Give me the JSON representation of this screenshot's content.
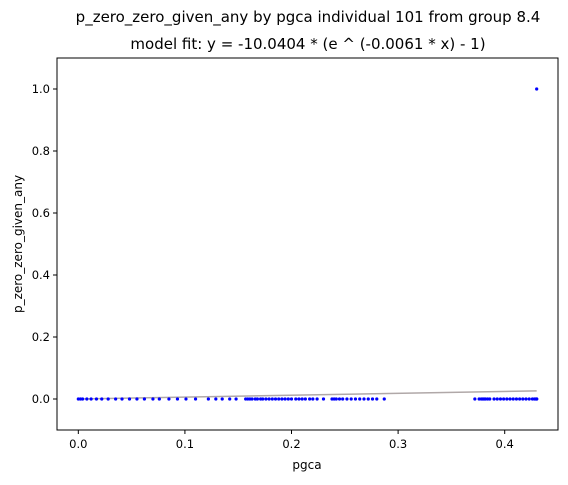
{
  "chart_data": {
    "type": "scatter",
    "title": "p_zero_zero_given_any by pgca individual 101 from group 8.4",
    "subtitle": "model fit: y = -10.0404 * (e ^ (-0.0061 * x) - 1)",
    "xlabel": "pgca",
    "ylabel": "p_zero_zero_given_any",
    "xlim": [
      -0.02,
      0.45
    ],
    "ylim": [
      -0.1,
      1.1
    ],
    "xticks": [
      {
        "value": 0.0,
        "label": "0.0"
      },
      {
        "value": 0.1,
        "label": "0.1"
      },
      {
        "value": 0.2,
        "label": "0.2"
      },
      {
        "value": 0.3,
        "label": "0.3"
      },
      {
        "value": 0.4,
        "label": "0.4"
      }
    ],
    "yticks": [
      {
        "value": 0.0,
        "label": "0.0"
      },
      {
        "value": 0.2,
        "label": "0.2"
      },
      {
        "value": 0.4,
        "label": "0.4"
      },
      {
        "value": 0.6,
        "label": "0.6"
      },
      {
        "value": 0.8,
        "label": "0.8"
      },
      {
        "value": 1.0,
        "label": "1.0"
      }
    ],
    "grid": false,
    "point_color": "#0000ff",
    "fit_color": "#b0a8a8",
    "series": [
      {
        "x": [
          0.0,
          0.002,
          0.004,
          0.008,
          0.012,
          0.017,
          0.022,
          0.028,
          0.035,
          0.041,
          0.048,
          0.055,
          0.062,
          0.07,
          0.076,
          0.085,
          0.093,
          0.101,
          0.11,
          0.122,
          0.129,
          0.135,
          0.142,
          0.148,
          0.157,
          0.159,
          0.161,
          0.163,
          0.166,
          0.168,
          0.171,
          0.173,
          0.176,
          0.179,
          0.182,
          0.185,
          0.188,
          0.191,
          0.194,
          0.197,
          0.2,
          0.204,
          0.207,
          0.21,
          0.213,
          0.217,
          0.22,
          0.224,
          0.23,
          0.238,
          0.24,
          0.242,
          0.245,
          0.248,
          0.252,
          0.256,
          0.26,
          0.264,
          0.268,
          0.272,
          0.276,
          0.28,
          0.287,
          0.372,
          0.376,
          0.378,
          0.379,
          0.38,
          0.381,
          0.382,
          0.384,
          0.386,
          0.39,
          0.393,
          0.396,
          0.399,
          0.402,
          0.405,
          0.408,
          0.411,
          0.414,
          0.417,
          0.42,
          0.423,
          0.426,
          0.428,
          0.429,
          0.43,
          0.43,
          0.43
        ],
        "y": [
          0.0,
          0.0,
          0.0,
          0.0,
          0.0,
          0.0,
          0.0,
          0.0,
          0.0,
          0.0,
          0.0,
          0.0,
          0.0,
          0.0,
          0.0,
          0.0,
          0.0,
          0.0,
          0.0,
          0.0,
          0.0,
          0.0,
          0.0,
          0.0,
          0.0,
          0.0,
          0.0,
          0.0,
          0.0,
          0.0,
          0.0,
          0.0,
          0.0,
          0.0,
          0.0,
          0.0,
          0.0,
          0.0,
          0.0,
          0.0,
          0.0,
          0.0,
          0.0,
          0.0,
          0.0,
          0.0,
          0.0,
          0.0,
          0.0,
          0.0,
          0.0,
          0.0,
          0.0,
          0.0,
          0.0,
          0.0,
          0.0,
          0.0,
          0.0,
          0.0,
          0.0,
          0.0,
          0.0,
          0.0,
          0.0,
          0.0,
          0.0,
          0.0,
          0.0,
          0.0,
          0.0,
          0.0,
          0.0,
          0.0,
          0.0,
          0.0,
          0.0,
          0.0,
          0.0,
          0.0,
          0.0,
          0.0,
          0.0,
          0.0,
          0.0,
          0.0,
          0.0,
          0.0,
          0.0,
          1.0
        ]
      }
    ],
    "fit_line": {
      "x": [
        0.0,
        0.43
      ],
      "y": [
        0.0,
        0.0263
      ]
    }
  }
}
